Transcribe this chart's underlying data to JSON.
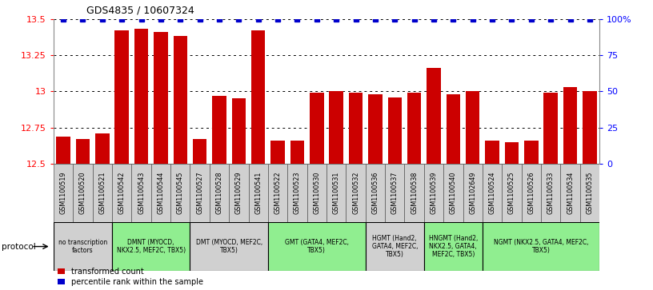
{
  "title": "GDS4835 / 10607324",
  "samples": [
    "GSM1100519",
    "GSM1100520",
    "GSM1100521",
    "GSM1100542",
    "GSM1100543",
    "GSM1100544",
    "GSM1100545",
    "GSM1100527",
    "GSM1100528",
    "GSM1100529",
    "GSM1100541",
    "GSM1100522",
    "GSM1100523",
    "GSM1100530",
    "GSM1100531",
    "GSM1100532",
    "GSM1100536",
    "GSM1100537",
    "GSM1100538",
    "GSM1100539",
    "GSM1100540",
    "GSM1102649",
    "GSM1100524",
    "GSM1100525",
    "GSM1100526",
    "GSM1100533",
    "GSM1100534",
    "GSM1100535"
  ],
  "transformed_count": [
    12.69,
    12.67,
    12.71,
    13.42,
    13.43,
    13.41,
    13.38,
    12.67,
    12.97,
    12.95,
    13.42,
    12.66,
    12.66,
    12.99,
    13.0,
    12.99,
    12.98,
    12.96,
    12.99,
    13.16,
    12.98,
    13.0,
    12.66,
    12.65,
    12.66,
    12.99,
    13.03,
    13.0
  ],
  "percentile": [
    100,
    100,
    100,
    100,
    100,
    100,
    100,
    100,
    100,
    100,
    100,
    100,
    100,
    100,
    100,
    100,
    100,
    100,
    100,
    100,
    100,
    100,
    100,
    100,
    100,
    100,
    100,
    100
  ],
  "ylim_left": [
    12.5,
    13.5
  ],
  "ylim_right": [
    0,
    100
  ],
  "yticks_left": [
    12.5,
    12.75,
    13.0,
    13.25,
    13.5
  ],
  "yticks_right": [
    0,
    25,
    50,
    75,
    100
  ],
  "ytick_labels_left": [
    "12.5",
    "12.75",
    "13",
    "13.25",
    "13.5"
  ],
  "ytick_labels_right": [
    "0",
    "25",
    "50",
    "75",
    "100%"
  ],
  "bar_color": "#CC0000",
  "dot_color": "#0000CC",
  "sample_box_color": "#d0d0d0",
  "groups": [
    {
      "label": "no transcription\nfactors",
      "start": 0,
      "end": 3,
      "color": "#d0d0d0"
    },
    {
      "label": "DMNT (MYOCD,\nNKX2.5, MEF2C, TBX5)",
      "start": 3,
      "end": 7,
      "color": "#90ee90"
    },
    {
      "label": "DMT (MYOCD, MEF2C,\nTBX5)",
      "start": 7,
      "end": 11,
      "color": "#d0d0d0"
    },
    {
      "label": "GMT (GATA4, MEF2C,\nTBX5)",
      "start": 11,
      "end": 16,
      "color": "#90ee90"
    },
    {
      "label": "HGMT (Hand2,\nGATA4, MEF2C,\nTBX5)",
      "start": 16,
      "end": 19,
      "color": "#d0d0d0"
    },
    {
      "label": "HNGMT (Hand2,\nNKX2.5, GATA4,\nMEF2C, TBX5)",
      "start": 19,
      "end": 22,
      "color": "#90ee90"
    },
    {
      "label": "NGMT (NKX2.5, GATA4, MEF2C,\nTBX5)",
      "start": 22,
      "end": 28,
      "color": "#90ee90"
    }
  ],
  "legend_red_label": "transformed count",
  "legend_blue_label": "percentile rank within the sample",
  "protocol_label": "protocol",
  "fig_width": 8.16,
  "fig_height": 3.63,
  "dpi": 100
}
